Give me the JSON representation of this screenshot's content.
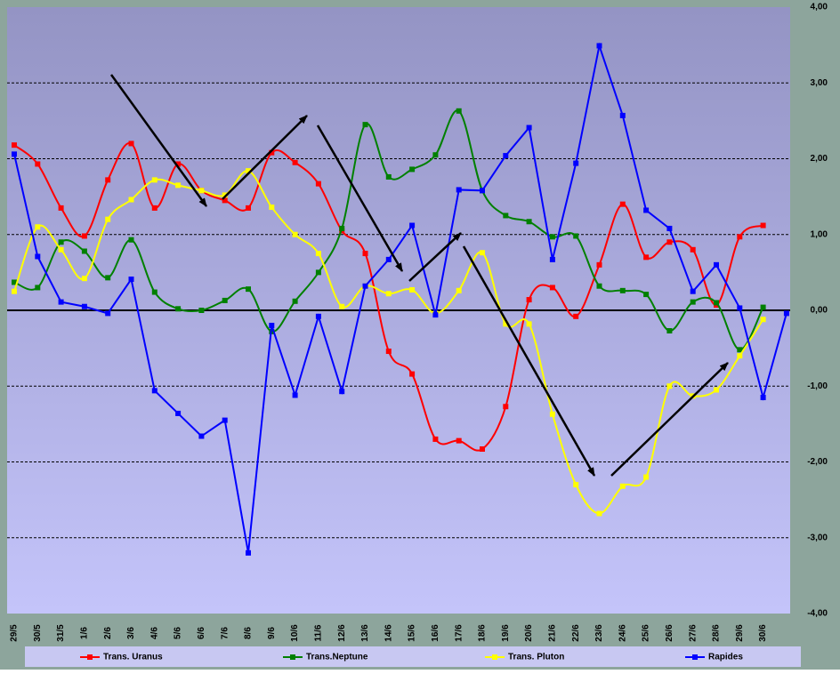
{
  "chart_data": {
    "type": "line",
    "categories": [
      "29/5",
      "30/5",
      "31/5",
      "1/6",
      "2/6",
      "3/6",
      "4/6",
      "5/6",
      "6/6",
      "7/6",
      "8/6",
      "9/6",
      "10/6",
      "11/6",
      "12/6",
      "13/6",
      "14/6",
      "15/6",
      "16/6",
      "17/6",
      "18/6",
      "19/6",
      "20/6",
      "21/6",
      "22/6",
      "23/6",
      "24/6",
      "25/6",
      "26/6",
      "27/6",
      "28/6",
      "29/6",
      "30/6",
      null
    ],
    "series": [
      {
        "name": "Trans. Uranus",
        "color": "#ff0000",
        "smooth": true,
        "values": [
          2.18,
          1.93,
          1.35,
          0.98,
          1.72,
          2.2,
          1.35,
          1.93,
          1.58,
          1.45,
          1.35,
          2.08,
          1.95,
          1.67,
          1.05,
          0.75,
          -0.54,
          -0.84,
          -1.7,
          -1.72,
          -1.83,
          -1.27,
          0.14,
          0.3,
          -0.08,
          0.6,
          1.4,
          0.7,
          0.9,
          0.8,
          0.07,
          0.97,
          1.12,
          null
        ]
      },
      {
        "name": "Trans.Neptune",
        "color": "#008000",
        "smooth": true,
        "values": [
          0.37,
          0.3,
          0.9,
          0.78,
          0.43,
          0.93,
          0.24,
          0.02,
          0.0,
          0.13,
          0.28,
          -0.28,
          0.12,
          0.5,
          1.08,
          2.45,
          1.76,
          1.86,
          2.05,
          2.63,
          1.58,
          1.25,
          1.17,
          0.97,
          0.98,
          0.32,
          0.26,
          0.21,
          -0.27,
          0.11,
          0.1,
          -0.52,
          0.04,
          null
        ]
      },
      {
        "name": "Trans. Pluton",
        "color": "#ffff00",
        "smooth": true,
        "values": [
          0.25,
          1.1,
          0.8,
          0.42,
          1.2,
          1.46,
          1.72,
          1.65,
          1.58,
          1.52,
          1.84,
          1.36,
          1.0,
          0.75,
          0.05,
          0.32,
          0.22,
          0.27,
          -0.04,
          0.26,
          0.76,
          -0.18,
          -0.18,
          -1.37,
          -2.3,
          -2.68,
          -2.32,
          -2.2,
          -1.0,
          -1.13,
          -1.05,
          -0.6,
          -0.12,
          null
        ]
      },
      {
        "name": "Rapides",
        "color": "#0000ff",
        "smooth": false,
        "values": [
          2.06,
          0.71,
          0.11,
          0.05,
          -0.04,
          0.41,
          -1.06,
          -1.36,
          -1.66,
          -1.45,
          -3.2,
          -0.2,
          -1.12,
          -0.08,
          -1.07,
          0.32,
          0.67,
          1.12,
          -0.06,
          1.59,
          1.58,
          2.04,
          2.41,
          0.67,
          1.94,
          3.49,
          2.57,
          1.32,
          1.08,
          0.25,
          0.6,
          0.03,
          -1.15,
          -0.04
        ]
      }
    ],
    "ylim": [
      -4,
      4
    ],
    "yticks": [
      {
        "value": 4,
        "label": "4,00"
      },
      {
        "value": 3,
        "label": "3,00"
      },
      {
        "value": 2,
        "label": "2,00"
      },
      {
        "value": 1,
        "label": "1,00"
      },
      {
        "value": 0,
        "label": "0,00"
      },
      {
        "value": -1,
        "label": "-1,00"
      },
      {
        "value": -2,
        "label": "-2,00"
      },
      {
        "value": -3,
        "label": "-3,00"
      },
      {
        "value": -4,
        "label": "-4,00"
      }
    ],
    "grid": true,
    "legend": "bottom"
  }
}
